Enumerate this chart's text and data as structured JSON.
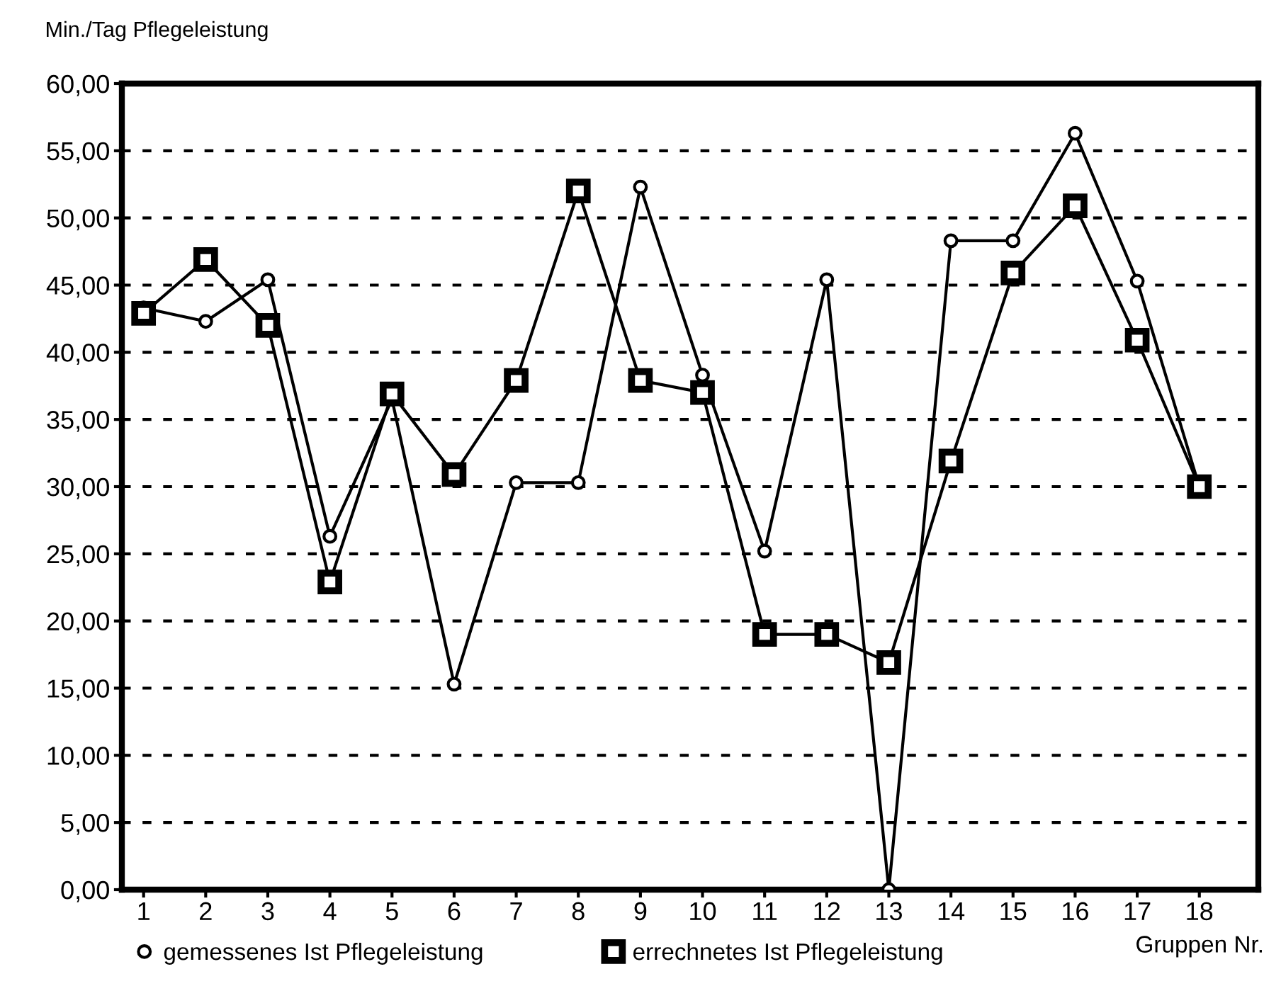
{
  "chart_data": {
    "type": "line",
    "ylabel": "Min./Tag Pflegeleistung",
    "xlabel": "Gruppen Nr.",
    "categories": [
      "1",
      "2",
      "3",
      "4",
      "5",
      "6",
      "7",
      "8",
      "9",
      "10",
      "11",
      "12",
      "13",
      "14",
      "15",
      "16",
      "17",
      "18"
    ],
    "series": [
      {
        "name": "gemessenes Ist Pflegeleistung",
        "color": "#000000",
        "marker": "circle",
        "values": [
          43.3,
          42.3,
          45.4,
          26.3,
          36.5,
          15.3,
          30.3,
          30.3,
          52.3,
          38.3,
          25.2,
          45.4,
          0,
          48.3,
          48.3,
          56.3,
          45.3,
          30.0
        ]
      },
      {
        "name": "errechnetes Ist Pflegeleistung",
        "color": "#000000",
        "marker": "square",
        "values": [
          42.9,
          46.9,
          42.0,
          22.9,
          36.9,
          30.9,
          37.9,
          52.0,
          37.9,
          37.0,
          19.0,
          19.0,
          16.9,
          31.9,
          45.9,
          50.9,
          40.9,
          30.0
        ]
      }
    ],
    "ylim": [
      0,
      60
    ],
    "yticks": [
      {
        "value": 0,
        "label": "0,00"
      },
      {
        "value": 5,
        "label": "5,00"
      },
      {
        "value": 10,
        "label": "10,00"
      },
      {
        "value": 15,
        "label": "15,00"
      },
      {
        "value": 20,
        "label": "20,00"
      },
      {
        "value": 25,
        "label": "25,00"
      },
      {
        "value": 30,
        "label": "30,00"
      },
      {
        "value": 35,
        "label": "35,00"
      },
      {
        "value": 40,
        "label": "40,00"
      },
      {
        "value": 45,
        "label": "45,00"
      },
      {
        "value": 50,
        "label": "50,00"
      },
      {
        "value": 55,
        "label": "55,00"
      },
      {
        "value": 60,
        "label": "60,00"
      }
    ],
    "grid": "y",
    "legend": "bottom",
    "line_style": "solid"
  }
}
